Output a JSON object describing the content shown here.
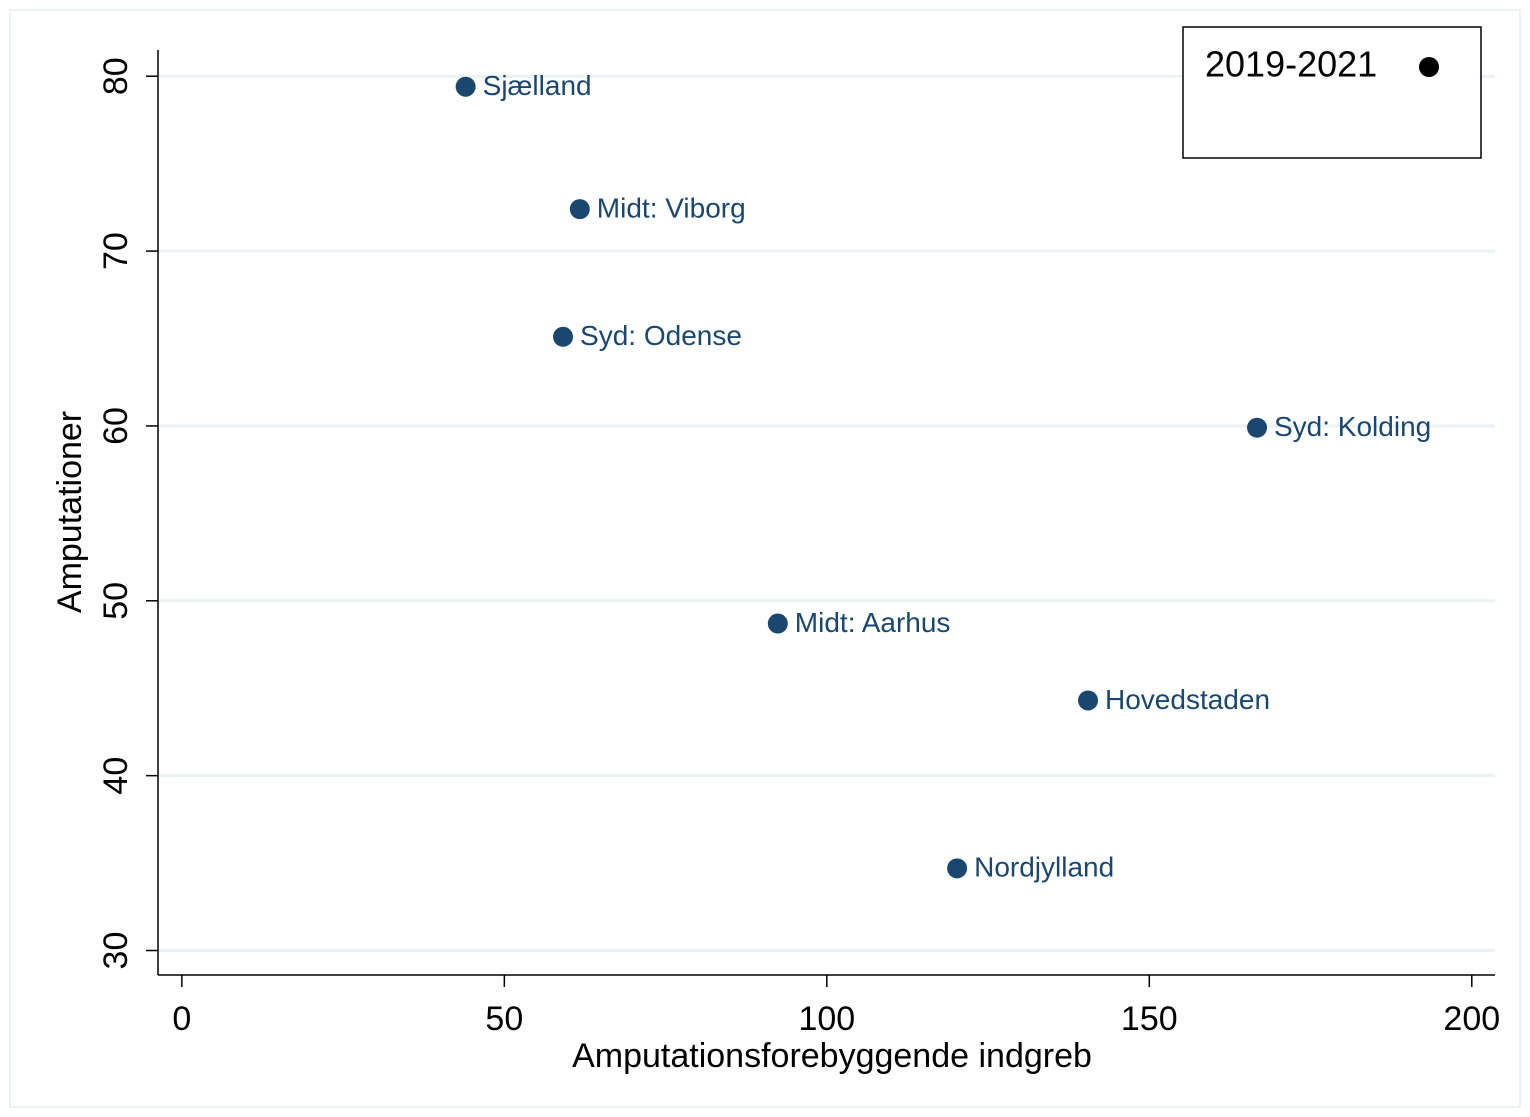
{
  "chart_data": {
    "type": "scatter",
    "x_label": "Amputationsforebyggende indgreb",
    "y_label": "Amputationer",
    "x": [
      44.0,
      61.7,
      59.1,
      166.7,
      92.4,
      140.5,
      120.2
    ],
    "series": [
      {
        "name": "2019-2021",
        "color": "#1a476f",
        "legend_color": "#000000",
        "values": [
          79.4,
          72.4,
          65.1,
          59.9,
          48.7,
          44.3,
          34.7
        ],
        "labels": [
          "Sjælland",
          "Midt: Viborg",
          "Syd: Odense",
          "Syd: Kolding",
          "Midt: Aarhus",
          "Hovedstaden",
          "Nordjylland"
        ]
      }
    ],
    "xlim": [
      -3.7,
      203.6
    ],
    "ylim": [
      28.6,
      81.5
    ],
    "xticks": [
      0,
      50,
      100,
      150,
      200
    ],
    "yticks": [
      30,
      40,
      50,
      60,
      70,
      80
    ],
    "grid": true,
    "legend_position": "top-right"
  }
}
